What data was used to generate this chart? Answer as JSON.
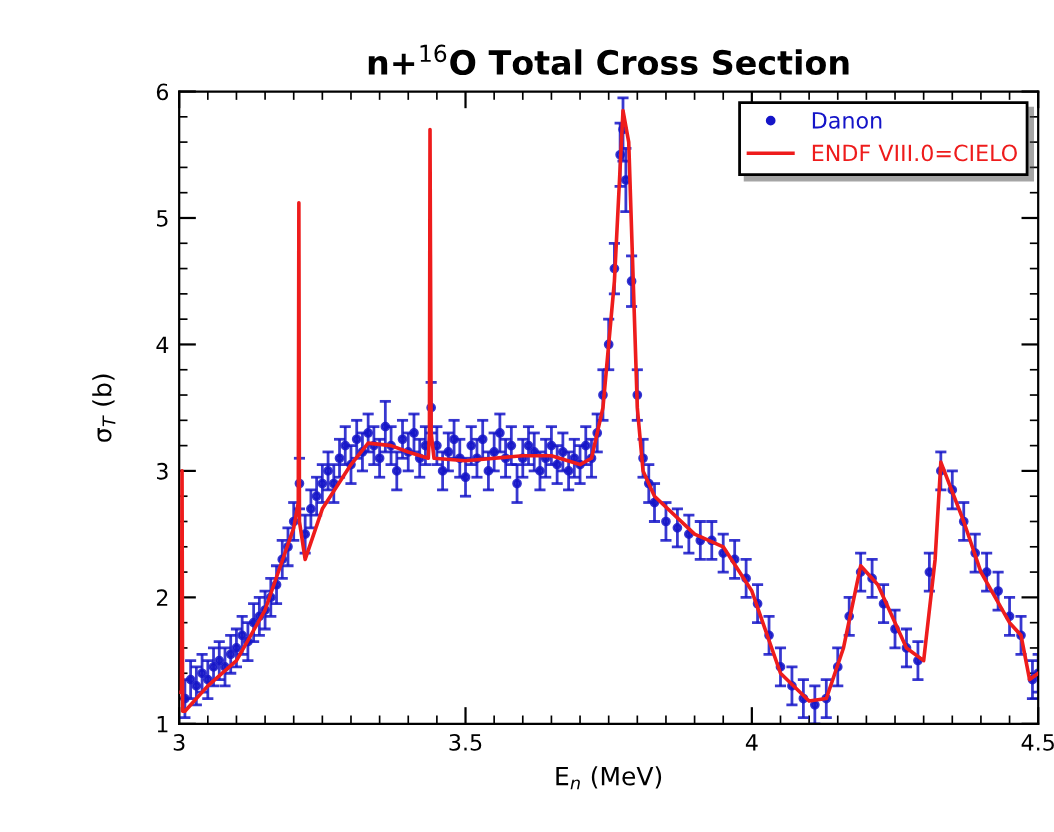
{
  "chart_data": {
    "type": "scatter",
    "title": "n+$^{16}$O Total Cross Section",
    "xlabel": "E$_{n}$ (MeV)",
    "ylabel": "σ$_{T}$ (b)",
    "xlim": [
      3,
      4.5
    ],
    "xticks": [
      3,
      3.5,
      4,
      4.5
    ],
    "ylim": [
      1,
      6
    ],
    "yticks": [
      1,
      2,
      3,
      4,
      5,
      6
    ],
    "grid": false,
    "legend": "top right",
    "series": [
      {
        "name": "Danon",
        "marker": "circle",
        "color": "#1515c8",
        "x": [
          3.01,
          3.02,
          3.03,
          3.04,
          3.05,
          3.06,
          3.07,
          3.08,
          3.09,
          3.1,
          3.11,
          3.12,
          3.13,
          3.14,
          3.15,
          3.16,
          3.17,
          3.18,
          3.19,
          3.2,
          3.21,
          3.22,
          3.23,
          3.24,
          3.25,
          3.26,
          3.27,
          3.28,
          3.29,
          3.3,
          3.31,
          3.32,
          3.33,
          3.34,
          3.35,
          3.36,
          3.37,
          3.38,
          3.39,
          3.4,
          3.41,
          3.42,
          3.43,
          3.44,
          3.45,
          3.46,
          3.47,
          3.48,
          3.49,
          3.5,
          3.51,
          3.52,
          3.53,
          3.54,
          3.55,
          3.56,
          3.57,
          3.58,
          3.59,
          3.6,
          3.61,
          3.62,
          3.63,
          3.64,
          3.65,
          3.66,
          3.67,
          3.68,
          3.69,
          3.7,
          3.71,
          3.72,
          3.73,
          3.74,
          3.75,
          3.76,
          3.77,
          3.775,
          3.78,
          3.79,
          3.8,
          3.81,
          3.82,
          3.83,
          3.85,
          3.87,
          3.89,
          3.91,
          3.93,
          3.95,
          3.97,
          3.99,
          4.01,
          4.03,
          4.05,
          4.07,
          4.09,
          4.11,
          4.13,
          4.15,
          4.17,
          4.19,
          4.21,
          4.23,
          4.25,
          4.27,
          4.29,
          4.31,
          4.33,
          4.35,
          4.37,
          4.39,
          4.41,
          4.43,
          4.45,
          4.47,
          4.49,
          4.5
        ],
        "values": [
          1.2,
          1.35,
          1.3,
          1.4,
          1.35,
          1.45,
          1.5,
          1.45,
          1.55,
          1.6,
          1.7,
          1.65,
          1.8,
          1.85,
          1.9,
          2.0,
          2.1,
          2.3,
          2.4,
          2.6,
          2.9,
          2.5,
          2.7,
          2.8,
          2.9,
          3.0,
          2.9,
          3.1,
          3.2,
          3.05,
          3.25,
          3.15,
          3.3,
          3.2,
          3.1,
          3.35,
          3.2,
          3.0,
          3.25,
          3.15,
          3.3,
          3.1,
          3.2,
          3.5,
          3.2,
          3.0,
          3.15,
          3.25,
          3.1,
          2.95,
          3.2,
          3.1,
          3.25,
          3.0,
          3.15,
          3.3,
          3.1,
          3.2,
          2.9,
          3.1,
          3.2,
          3.15,
          3.0,
          3.1,
          3.2,
          3.05,
          3.15,
          3.0,
          3.1,
          3.05,
          3.2,
          3.1,
          3.3,
          3.6,
          4.0,
          4.6,
          5.5,
          5.7,
          5.3,
          4.5,
          3.6,
          3.1,
          2.9,
          2.75,
          2.6,
          2.55,
          2.5,
          2.45,
          2.45,
          2.35,
          2.3,
          2.15,
          1.95,
          1.7,
          1.45,
          1.3,
          1.2,
          1.15,
          1.2,
          1.45,
          1.85,
          2.2,
          2.15,
          1.95,
          1.75,
          1.6,
          1.5,
          2.2,
          3.0,
          2.85,
          2.6,
          2.35,
          2.2,
          2.05,
          1.85,
          1.7,
          1.35,
          1.4
        ],
        "errors": [
          0.15,
          0.15,
          0.15,
          0.15,
          0.15,
          0.15,
          0.15,
          0.15,
          0.15,
          0.15,
          0.15,
          0.15,
          0.15,
          0.15,
          0.15,
          0.15,
          0.15,
          0.15,
          0.15,
          0.15,
          0.2,
          0.15,
          0.15,
          0.15,
          0.15,
          0.15,
          0.15,
          0.15,
          0.15,
          0.15,
          0.15,
          0.15,
          0.15,
          0.15,
          0.15,
          0.2,
          0.15,
          0.15,
          0.15,
          0.15,
          0.15,
          0.15,
          0.15,
          0.2,
          0.15,
          0.15,
          0.15,
          0.15,
          0.15,
          0.15,
          0.15,
          0.15,
          0.15,
          0.15,
          0.15,
          0.15,
          0.15,
          0.15,
          0.15,
          0.15,
          0.15,
          0.15,
          0.15,
          0.15,
          0.15,
          0.15,
          0.15,
          0.15,
          0.15,
          0.15,
          0.15,
          0.15,
          0.15,
          0.2,
          0.2,
          0.2,
          0.25,
          0.25,
          0.25,
          0.2,
          0.2,
          0.15,
          0.15,
          0.15,
          0.15,
          0.15,
          0.15,
          0.15,
          0.15,
          0.15,
          0.15,
          0.15,
          0.15,
          0.15,
          0.15,
          0.15,
          0.15,
          0.15,
          0.15,
          0.15,
          0.15,
          0.15,
          0.15,
          0.15,
          0.15,
          0.15,
          0.15,
          0.15,
          0.15,
          0.15,
          0.15,
          0.15,
          0.15,
          0.15,
          0.15,
          0.15,
          0.15,
          0.15
        ]
      },
      {
        "name": "ENDF VIII.0=CIELO",
        "type": "line",
        "color": "#ee1c1c",
        "x": [
          3.0,
          3.004,
          3.005,
          3.006,
          3.01,
          3.05,
          3.1,
          3.15,
          3.2,
          3.208,
          3.209,
          3.21,
          3.22,
          3.25,
          3.3,
          3.33,
          3.37,
          3.4,
          3.435,
          3.437,
          3.438,
          3.44,
          3.445,
          3.5,
          3.6,
          3.65,
          3.7,
          3.72,
          3.74,
          3.76,
          3.775,
          3.785,
          3.8,
          3.81,
          3.83,
          3.9,
          3.95,
          4.0,
          4.05,
          4.1,
          4.13,
          4.16,
          4.19,
          4.22,
          4.27,
          4.3,
          4.32,
          4.33,
          4.37,
          4.4,
          4.45,
          4.47,
          4.485,
          4.5
        ],
        "values": [
          1.25,
          1.25,
          3.0,
          1.1,
          1.1,
          1.3,
          1.5,
          1.9,
          2.55,
          2.75,
          5.12,
          2.6,
          2.3,
          2.7,
          3.05,
          3.22,
          3.2,
          3.15,
          3.1,
          3.3,
          5.7,
          3.3,
          3.1,
          3.08,
          3.12,
          3.12,
          3.05,
          3.1,
          3.5,
          4.5,
          5.85,
          5.6,
          3.5,
          3.0,
          2.8,
          2.5,
          2.4,
          2.05,
          1.4,
          1.18,
          1.2,
          1.6,
          2.25,
          2.1,
          1.6,
          1.5,
          2.3,
          3.07,
          2.6,
          2.2,
          1.8,
          1.7,
          1.35,
          1.4
        ]
      }
    ]
  }
}
